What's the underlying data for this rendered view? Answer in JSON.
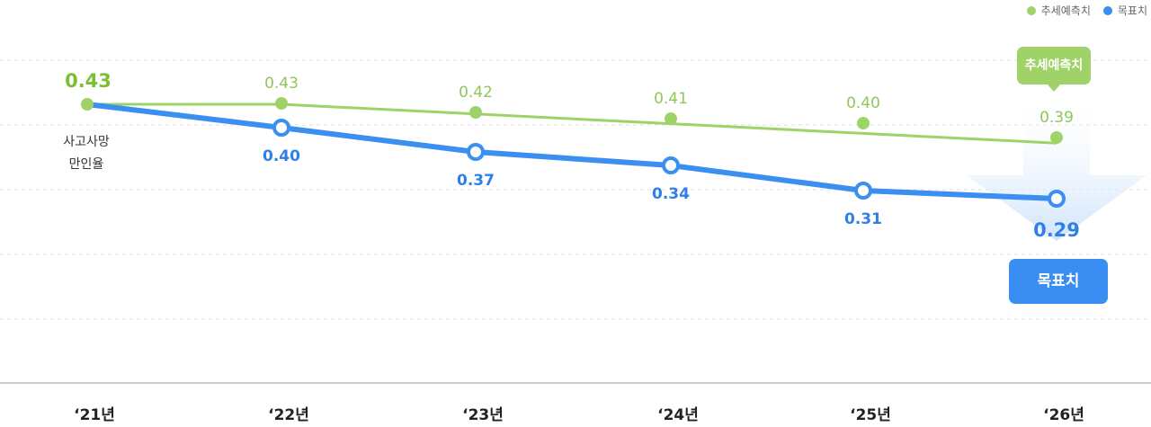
{
  "chart_data": {
    "type": "line",
    "categories": [
      "‘21년",
      "‘22년",
      "‘23년",
      "‘24년",
      "‘25년",
      "‘26년"
    ],
    "series": [
      {
        "name": "추세예측치",
        "values": [
          0.43,
          0.43,
          0.42,
          0.41,
          0.4,
          0.39
        ],
        "color": "#9fd36a",
        "label_color": "#8fc75a"
      },
      {
        "name": "목표치",
        "values": [
          0.43,
          0.4,
          0.37,
          0.34,
          0.31,
          0.29
        ],
        "color": "#3a8ff0",
        "label_color": "#2f80e6"
      }
    ],
    "start_label": "0.43",
    "ylabel": "사고사망 만인율",
    "ylabel_lines": [
      "사고사망",
      "만인율"
    ],
    "ylim": [
      0.0,
      0.5
    ],
    "grid": true,
    "legend": "top-right",
    "callouts": {
      "trend": "추세예측치",
      "target": "목표치"
    }
  },
  "colors": {
    "trend": "#9fd36a",
    "target": "#3a8ff0",
    "start_label": "#7cbf32",
    "callout_trend": "#9fd36a",
    "callout_target": "#3b8ef1"
  }
}
